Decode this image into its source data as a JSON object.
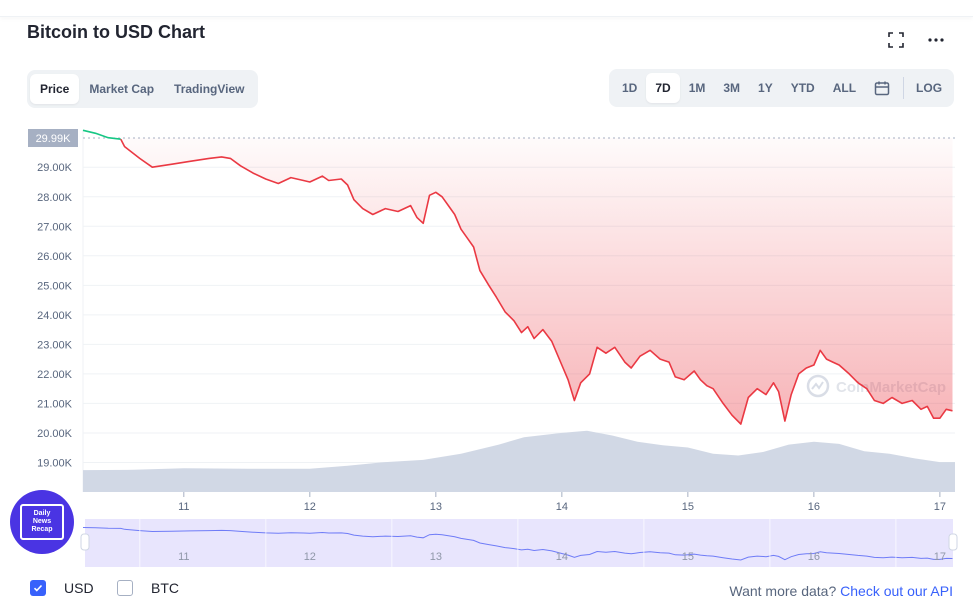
{
  "header": {
    "title": "Bitcoin to USD Chart"
  },
  "tabs_left": [
    {
      "label": "Price",
      "active": true
    },
    {
      "label": "Market Cap",
      "active": false
    },
    {
      "label": "TradingView",
      "active": false
    }
  ],
  "tabs_right": [
    {
      "label": "1D",
      "active": false
    },
    {
      "label": "7D",
      "active": true
    },
    {
      "label": "1M",
      "active": false
    },
    {
      "label": "3M",
      "active": false
    },
    {
      "label": "1Y",
      "active": false
    },
    {
      "label": "YTD",
      "active": false
    },
    {
      "label": "ALL",
      "active": false
    }
  ],
  "log_label": "LOG",
  "footer": {
    "usd_label": "USD",
    "btc_label": "BTC",
    "api_prefix": "Want more data?",
    "api_link": "Check out our API"
  },
  "badge_text": "Daily News Recap",
  "watermark": "CoinMarketCap",
  "colors": {
    "up": "#16c784",
    "down": "#ea3943",
    "volume": "#cfd6e4",
    "brush_line": "#6f7cf7",
    "brush_fill": "#e4e1fd",
    "accent": "#3861fb"
  },
  "chart_data": {
    "type": "line",
    "x_ticks": [
      "11",
      "12",
      "13",
      "14",
      "15",
      "16",
      "17"
    ],
    "x_tick_days": [
      11,
      12,
      13,
      14,
      15,
      16,
      17
    ],
    "y_ticks": [
      "19.00K",
      "20.00K",
      "21.00K",
      "22.00K",
      "23.00K",
      "24.00K",
      "25.00K",
      "26.00K",
      "27.00K",
      "28.00K",
      "29.00K"
    ],
    "y_tick_values": [
      19000,
      20000,
      21000,
      22000,
      23000,
      24000,
      25000,
      26000,
      27000,
      28000,
      29000
    ],
    "ylim": [
      18000,
      30600
    ],
    "xlim": [
      10.2,
      17.12
    ],
    "open_price_label": "29.99K",
    "open_price": 29990,
    "price_series": [
      [
        10.2,
        30250
      ],
      [
        10.3,
        30150
      ],
      [
        10.4,
        30000
      ],
      [
        10.5,
        29950
      ],
      [
        10.53,
        29700
      ],
      [
        10.65,
        29300
      ],
      [
        10.75,
        29000
      ],
      [
        10.9,
        29100
      ],
      [
        11.05,
        29200
      ],
      [
        11.2,
        29300
      ],
      [
        11.3,
        29350
      ],
      [
        11.37,
        29300
      ],
      [
        11.45,
        29050
      ],
      [
        11.55,
        28800
      ],
      [
        11.65,
        28600
      ],
      [
        11.75,
        28450
      ],
      [
        11.85,
        28650
      ],
      [
        11.95,
        28550
      ],
      [
        12.0,
        28500
      ],
      [
        12.1,
        28700
      ],
      [
        12.15,
        28550
      ],
      [
        12.25,
        28600
      ],
      [
        12.3,
        28400
      ],
      [
        12.35,
        27900
      ],
      [
        12.42,
        27600
      ],
      [
        12.5,
        27400
      ],
      [
        12.6,
        27600
      ],
      [
        12.7,
        27500
      ],
      [
        12.8,
        27700
      ],
      [
        12.85,
        27300
      ],
      [
        12.9,
        27100
      ],
      [
        12.95,
        28050
      ],
      [
        13.0,
        28150
      ],
      [
        13.05,
        28000
      ],
      [
        13.1,
        27700
      ],
      [
        13.15,
        27400
      ],
      [
        13.2,
        26900
      ],
      [
        13.25,
        26600
      ],
      [
        13.3,
        26300
      ],
      [
        13.35,
        25500
      ],
      [
        13.42,
        25000
      ],
      [
        13.48,
        24600
      ],
      [
        13.55,
        24100
      ],
      [
        13.62,
        23800
      ],
      [
        13.68,
        23400
      ],
      [
        13.73,
        23600
      ],
      [
        13.78,
        23200
      ],
      [
        13.85,
        23500
      ],
      [
        13.92,
        23100
      ],
      [
        14.0,
        22300
      ],
      [
        14.05,
        21800
      ],
      [
        14.1,
        21100
      ],
      [
        14.15,
        21700
      ],
      [
        14.22,
        22000
      ],
      [
        14.28,
        22900
      ],
      [
        14.35,
        22700
      ],
      [
        14.42,
        22900
      ],
      [
        14.5,
        22400
      ],
      [
        14.55,
        22200
      ],
      [
        14.62,
        22600
      ],
      [
        14.7,
        22800
      ],
      [
        14.78,
        22500
      ],
      [
        14.85,
        22400
      ],
      [
        14.9,
        21900
      ],
      [
        14.97,
        21800
      ],
      [
        15.05,
        22100
      ],
      [
        15.1,
        21800
      ],
      [
        15.15,
        21600
      ],
      [
        15.2,
        21500
      ],
      [
        15.28,
        21000
      ],
      [
        15.35,
        20600
      ],
      [
        15.42,
        20300
      ],
      [
        15.48,
        21200
      ],
      [
        15.55,
        21500
      ],
      [
        15.62,
        21300
      ],
      [
        15.68,
        21700
      ],
      [
        15.72,
        21400
      ],
      [
        15.77,
        20400
      ],
      [
        15.82,
        21300
      ],
      [
        15.88,
        22000
      ],
      [
        15.94,
        22200
      ],
      [
        16.0,
        22300
      ],
      [
        16.05,
        22800
      ],
      [
        16.1,
        22500
      ],
      [
        16.15,
        22400
      ],
      [
        16.2,
        22300
      ],
      [
        16.28,
        22000
      ],
      [
        16.35,
        21700
      ],
      [
        16.42,
        21500
      ],
      [
        16.48,
        21100
      ],
      [
        16.55,
        21000
      ],
      [
        16.62,
        21200
      ],
      [
        16.7,
        21000
      ],
      [
        16.78,
        21100
      ],
      [
        16.85,
        20800
      ],
      [
        16.9,
        20900
      ],
      [
        16.95,
        20500
      ],
      [
        17.0,
        20500
      ],
      [
        17.05,
        20800
      ],
      [
        17.1,
        20750
      ]
    ],
    "volume_series": [
      [
        10.2,
        0.6
      ],
      [
        10.6,
        0.61
      ],
      [
        11.0,
        0.65
      ],
      [
        11.5,
        0.64
      ],
      [
        12.0,
        0.64
      ],
      [
        12.3,
        0.72
      ],
      [
        12.6,
        0.82
      ],
      [
        12.9,
        0.88
      ],
      [
        13.2,
        1.05
      ],
      [
        13.5,
        1.3
      ],
      [
        13.7,
        1.5
      ],
      [
        14.0,
        1.62
      ],
      [
        14.2,
        1.68
      ],
      [
        14.4,
        1.55
      ],
      [
        14.6,
        1.38
      ],
      [
        14.8,
        1.28
      ],
      [
        15.0,
        1.22
      ],
      [
        15.2,
        1.05
      ],
      [
        15.4,
        1.0
      ],
      [
        15.6,
        1.1
      ],
      [
        15.8,
        1.3
      ],
      [
        16.0,
        1.38
      ],
      [
        16.2,
        1.32
      ],
      [
        16.4,
        1.12
      ],
      [
        16.6,
        1.05
      ],
      [
        16.8,
        0.92
      ],
      [
        17.0,
        0.82
      ],
      [
        17.12,
        0.82
      ]
    ]
  }
}
